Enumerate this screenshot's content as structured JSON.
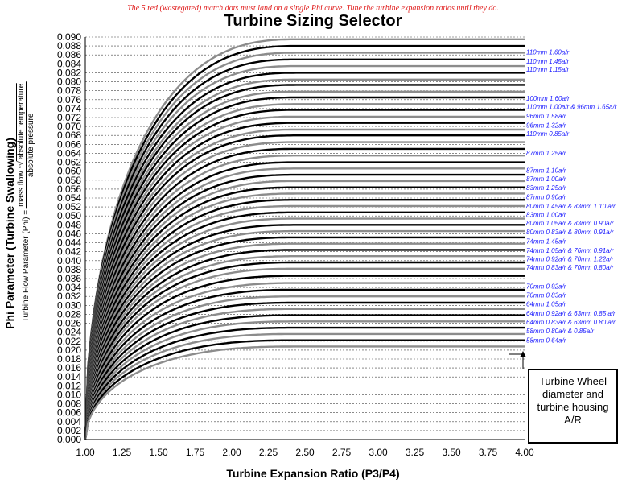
{
  "annotation_note": "The 5 red (wastegated) match dots must land on a single Phi curve.  Tune the turbine expansion ratios until they do.",
  "callout_text": "Turbine Wheel diameter and turbine housing A/R",
  "y_formula": {
    "prefix": "Turbine Flow Parameter (Phi) =",
    "numerator": "mass flow",
    "sqrt_term": "absolute temperature",
    "denominator": "absolute pressure"
  },
  "colors": {
    "curve_black": "#000000",
    "curve_gray": "#8c8c8c",
    "label_blue": "#1a1aff",
    "note_red": "#e01b1b"
  },
  "chart_data": {
    "type": "line",
    "title": "Turbine Sizing Selector",
    "xlabel": "Turbine Expansion Ratio (P3/P4)",
    "ylabel": "Phi Parameter (Turbine Swallowing)",
    "xlim": [
      1.0,
      4.0
    ],
    "ylim": [
      0.0,
      0.09
    ],
    "x_ticks": [
      "1.00",
      "1.25",
      "1.50",
      "1.75",
      "2.00",
      "2.25",
      "2.50",
      "2.75",
      "3.00",
      "3.25",
      "3.50",
      "3.75",
      "4.00"
    ],
    "y_ticks": [
      "0.000",
      "0.002",
      "0.004",
      "0.006",
      "0.008",
      "0.010",
      "0.012",
      "0.014",
      "0.016",
      "0.018",
      "0.020",
      "0.022",
      "0.024",
      "0.026",
      "0.028",
      "0.030",
      "0.032",
      "0.034",
      "0.036",
      "0.038",
      "0.040",
      "0.042",
      "0.044",
      "0.046",
      "0.048",
      "0.050",
      "0.052",
      "0.054",
      "0.056",
      "0.058",
      "0.060",
      "0.062",
      "0.064",
      "0.066",
      "0.068",
      "0.070",
      "0.072",
      "0.074",
      "0.076",
      "0.078",
      "0.080",
      "0.082",
      "0.084",
      "0.086",
      "0.088",
      "0.090"
    ],
    "grid": "horizontal dashed",
    "curves": [
      {
        "phi": 0.0895,
        "color": "gray"
      },
      {
        "phi": 0.088,
        "color": "black"
      },
      {
        "phi": 0.0865,
        "color": "gray"
      },
      {
        "phi": 0.085,
        "color": "black"
      },
      {
        "phi": 0.0835,
        "color": "gray"
      },
      {
        "phi": 0.082,
        "color": "black"
      },
      {
        "phi": 0.0805,
        "color": "gray"
      },
      {
        "phi": 0.0793,
        "color": "black"
      },
      {
        "phi": 0.0778,
        "color": "gray"
      },
      {
        "phi": 0.0765,
        "color": "black"
      },
      {
        "phi": 0.075,
        "color": "gray"
      },
      {
        "phi": 0.0737,
        "color": "black"
      },
      {
        "phi": 0.0722,
        "color": "gray"
      },
      {
        "phi": 0.0708,
        "color": "black"
      },
      {
        "phi": 0.0693,
        "color": "gray"
      },
      {
        "phi": 0.068,
        "color": "black"
      },
      {
        "phi": 0.0665,
        "color": "gray"
      },
      {
        "phi": 0.065,
        "color": "black"
      },
      {
        "phi": 0.0635,
        "color": "gray"
      },
      {
        "phi": 0.062,
        "color": "black"
      },
      {
        "phi": 0.0606,
        "color": "gray"
      },
      {
        "phi": 0.0592,
        "color": "black"
      },
      {
        "phi": 0.0578,
        "color": "gray"
      },
      {
        "phi": 0.0564,
        "color": "black"
      },
      {
        "phi": 0.055,
        "color": "gray"
      },
      {
        "phi": 0.0536,
        "color": "black"
      },
      {
        "phi": 0.0522,
        "color": "gray"
      },
      {
        "phi": 0.0508,
        "color": "black"
      },
      {
        "phi": 0.0494,
        "color": "gray"
      },
      {
        "phi": 0.048,
        "color": "black"
      },
      {
        "phi": 0.0466,
        "color": "gray"
      },
      {
        "phi": 0.0452,
        "color": "black"
      },
      {
        "phi": 0.0438,
        "color": "gray"
      },
      {
        "phi": 0.0424,
        "color": "black"
      },
      {
        "phi": 0.041,
        "color": "gray"
      },
      {
        "phi": 0.0396,
        "color": "black"
      },
      {
        "phi": 0.0382,
        "color": "gray"
      },
      {
        "phi": 0.0366,
        "color": "black"
      },
      {
        "phi": 0.035,
        "color": "gray"
      },
      {
        "phi": 0.0335,
        "color": "black"
      },
      {
        "phi": 0.032,
        "color": "gray"
      },
      {
        "phi": 0.0306,
        "color": "black"
      },
      {
        "phi": 0.0292,
        "color": "gray"
      },
      {
        "phi": 0.0278,
        "color": "black"
      },
      {
        "phi": 0.0264,
        "color": "gray"
      },
      {
        "phi": 0.025,
        "color": "black"
      },
      {
        "phi": 0.0236,
        "color": "gray"
      },
      {
        "phi": 0.0222,
        "color": "black"
      },
      {
        "phi": 0.0208,
        "color": "gray"
      }
    ],
    "curve_labels": [
      {
        "text": "110mm 1.60a/r",
        "phi": 0.0867
      },
      {
        "text": "110mm 1.45a/r",
        "phi": 0.0846
      },
      {
        "text": "110mm 1.15a/r",
        "phi": 0.0828
      },
      {
        "text": "100mm 1.60a/r",
        "phi": 0.0763
      },
      {
        "text": "110mm 1.00a/r & 96mm 1.65a/r",
        "phi": 0.0744
      },
      {
        "text": "96mm 1.58a/r",
        "phi": 0.0724
      },
      {
        "text": "96mm 1.32a/r",
        "phi": 0.0703
      },
      {
        "text": "110mm 0.85a/r",
        "phi": 0.0684
      },
      {
        "text": "87mm 1.25a/r",
        "phi": 0.0641
      },
      {
        "text": "87mm 1.10a/r",
        "phi": 0.0602
      },
      {
        "text": "87mm 1.00a/r",
        "phi": 0.0583
      },
      {
        "text": "83mm 1.25a/r",
        "phi": 0.0563
      },
      {
        "text": "87mm 0.90a/r",
        "phi": 0.0543
      },
      {
        "text": "80mm 1.45a/r & 83mm 1.10 a/r",
        "phi": 0.0522
      },
      {
        "text": "83mm 1.00a/r",
        "phi": 0.0503
      },
      {
        "text": "80mm 1.05a/r & 83mm 0.90a/r",
        "phi": 0.0484
      },
      {
        "text": "80mm 0.83a/r & 80mm 0.91a/r",
        "phi": 0.0464
      },
      {
        "text": "74mm 1.45a/r",
        "phi": 0.0444
      },
      {
        "text": "74mm 1.05a/r & 76mm 0.91a/r",
        "phi": 0.0423
      },
      {
        "text": "74mm 0.92a/r & 70mm 1.22a/r",
        "phi": 0.0404
      },
      {
        "text": "74mm 0.83a/r & 70mm 0.80a/r",
        "phi": 0.0385
      },
      {
        "text": "70mm 0.92a/r",
        "phi": 0.0343
      },
      {
        "text": "70mm 0.83a/r",
        "phi": 0.0323
      },
      {
        "text": "64mm 1.05a/r",
        "phi": 0.0303
      },
      {
        "text": "64mm 0.92a/r & 63mm 0.85 a/r",
        "phi": 0.0283
      },
      {
        "text": "64mm 0.83a/r & 63mm 0.80 a/r",
        "phi": 0.0263
      },
      {
        "text": "58mm 0.80a/r & 0.85a/r",
        "phi": 0.0243
      },
      {
        "text": "58mm  0.64a/r",
        "phi": 0.0222
      }
    ]
  }
}
